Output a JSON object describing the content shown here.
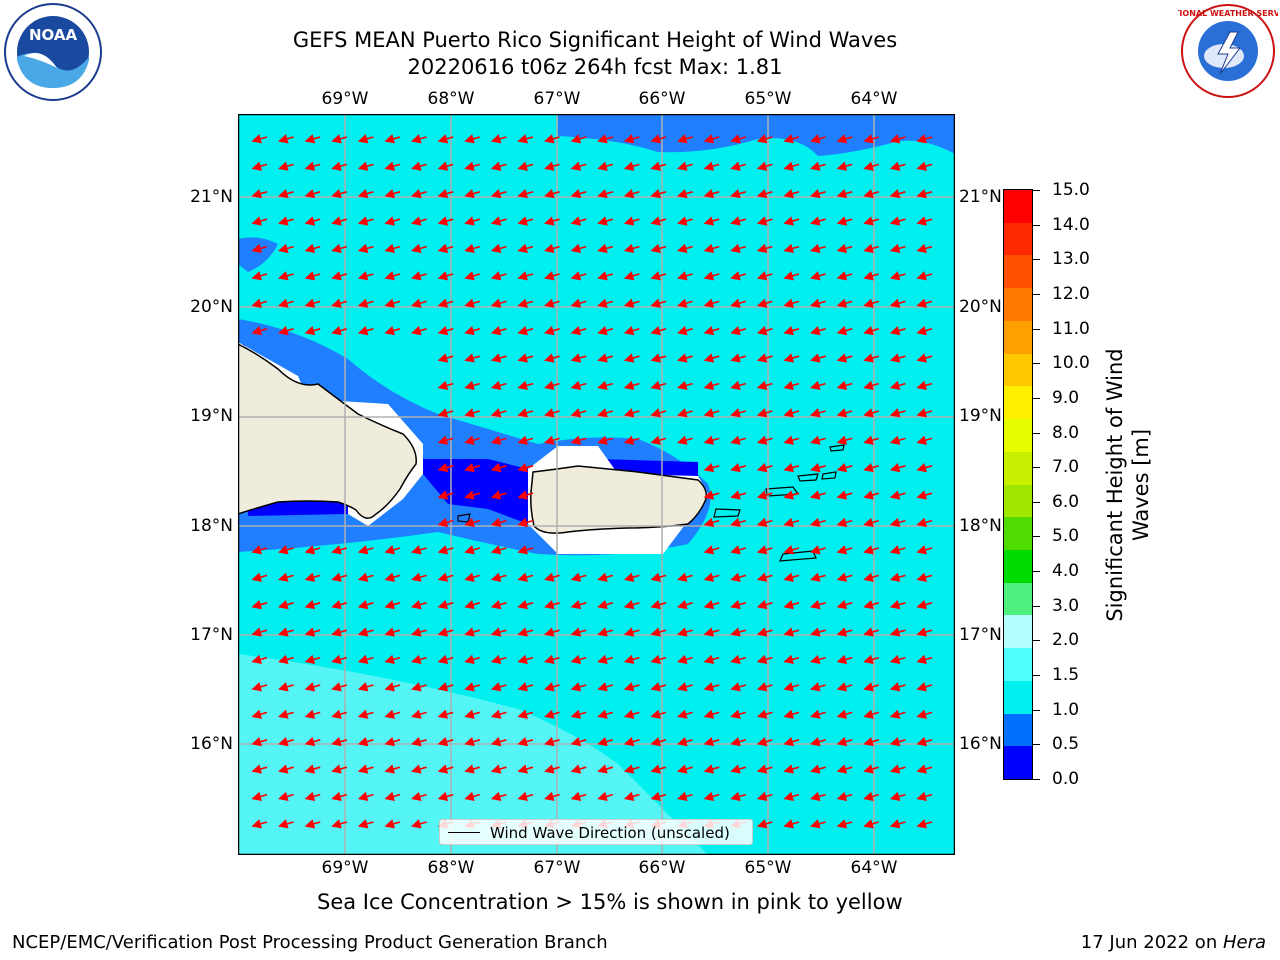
{
  "header": {
    "title_line1": "GEFS MEAN Puerto Rico Significant Height of Wind Waves",
    "title_line2": "20220616 t06z 264h fcst   Max: 1.81"
  },
  "logos": {
    "noaa": {
      "text": "NOAA",
      "icon": "noaa-logo"
    },
    "nws": {
      "text": "NATIONAL WEATHER SERVICE",
      "icon": "nws-logo"
    }
  },
  "map": {
    "lon_ticks": [
      "69°W",
      "68°W",
      "67°W",
      "66°W",
      "65°W",
      "64°W"
    ],
    "lat_ticks": [
      "21°N",
      "20°N",
      "19°N",
      "18°N",
      "17°N",
      "16°N"
    ],
    "ocean_color": "#00f0f0",
    "land_color": "#efecdc",
    "arrow_color": "#ff0000",
    "legend_label": "Wind Wave Direction (unscaled)"
  },
  "colorbar": {
    "title": "Significant Height of Wind Waves [m]",
    "title_line1": "Significant Height of Wind",
    "title_line2": "Waves [m]",
    "labels": [
      "15.0",
      "14.0",
      "13.0",
      "12.0",
      "11.0",
      "10.0",
      "9.0",
      "8.0",
      "7.0",
      "6.0",
      "5.0",
      "4.0",
      "3.0",
      "2.0",
      "1.5",
      "1.0",
      "0.5",
      "0.0"
    ],
    "colors_top_to_bottom": [
      "#ff0000",
      "#ff2800",
      "#ff5000",
      "#ff7800",
      "#ffa000",
      "#ffc800",
      "#fff000",
      "#e6ff00",
      "#c8f000",
      "#a0e600",
      "#50dc00",
      "#00dc00",
      "#50f080",
      "#b4ffff",
      "#50ffff",
      "#00f0f0",
      "#0070ff",
      "#0000ff"
    ]
  },
  "footer": {
    "sea_ice_note": "Sea Ice Concentration > 15% is shown in pink to yellow",
    "credit": "NCEP/EMC/Verification Post Processing Product Generation Branch",
    "date": "17 Jun 2022 on ",
    "machine": "Hera"
  }
}
